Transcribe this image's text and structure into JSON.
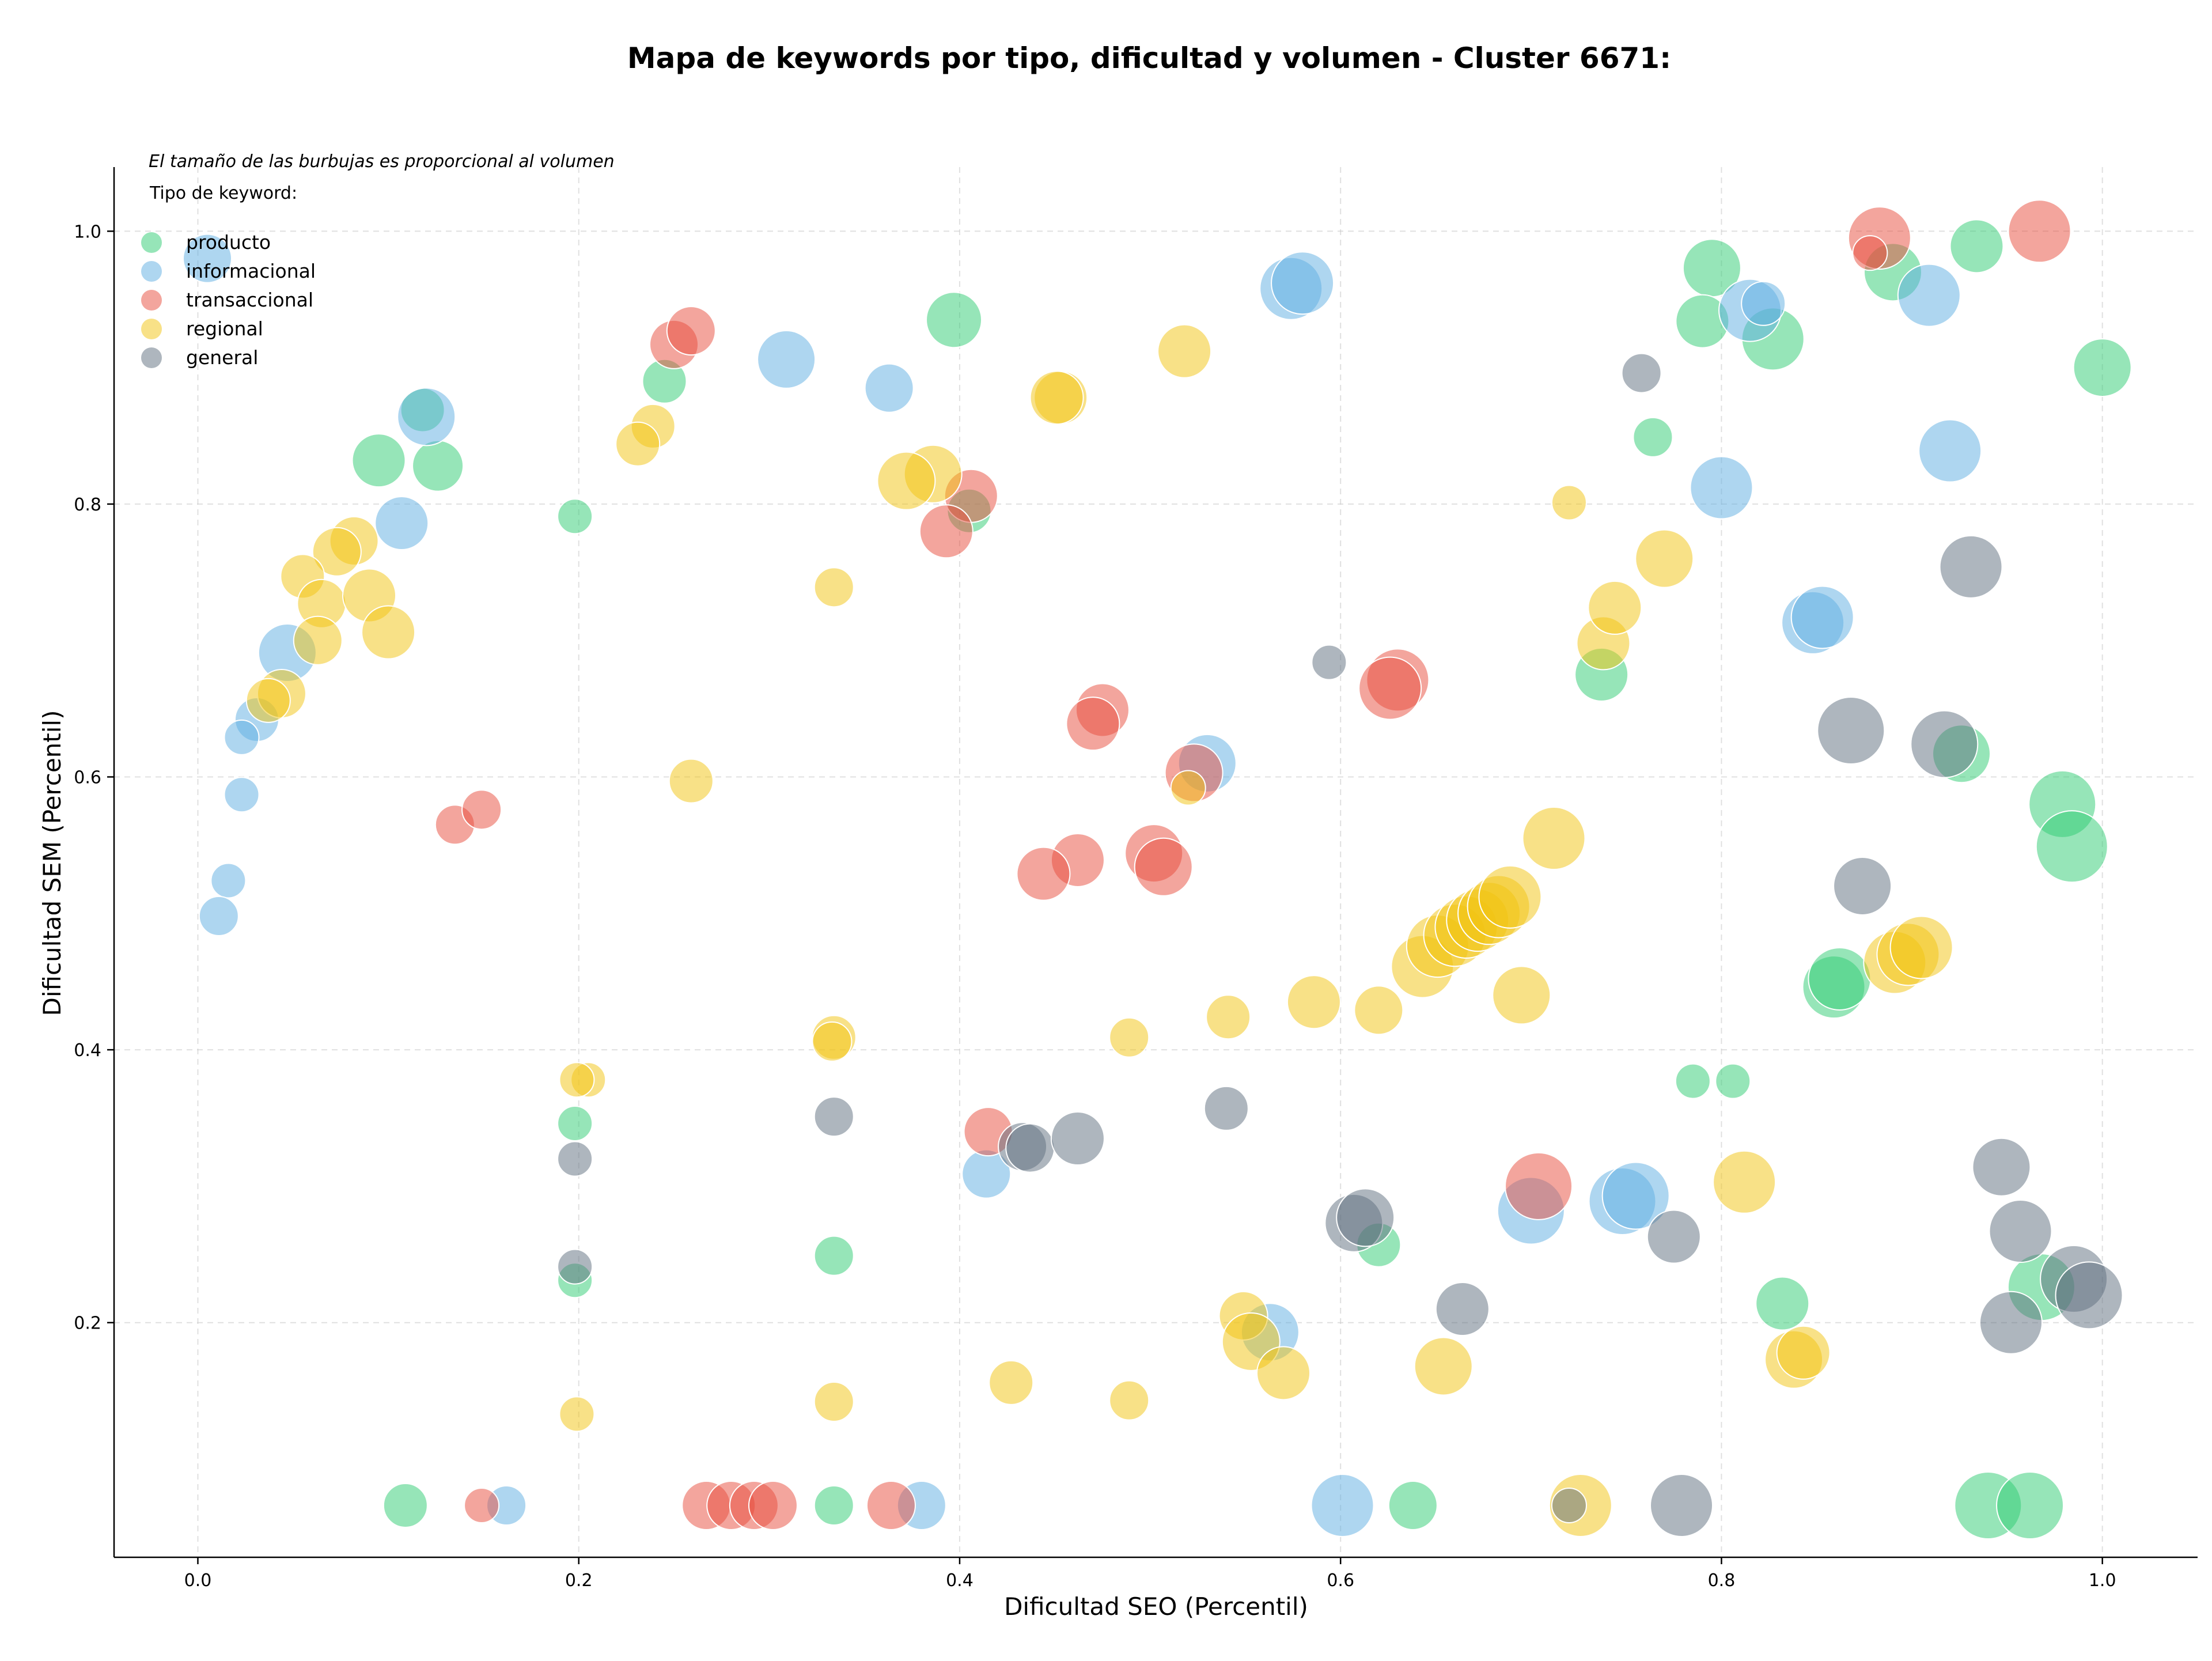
{
  "chart_data": {
    "type": "scatter",
    "title": "Mapa de keywords por tipo, dificultad y volumen - Cluster 6671:",
    "annotation": "El tamaño de las burbujas es proporcional al volumen",
    "xlabel": "Dificultad SEO (Percentil)",
    "ylabel": "Dificultad SEM (Percentil)",
    "xlim": [
      -0.044,
      1.05
    ],
    "ylim": [
      0.028,
      1.047
    ],
    "x_ticks": [
      "0.0",
      "0.2",
      "0.4",
      "0.6",
      "0.8",
      "1.0"
    ],
    "y_ticks": [
      "0.2",
      "0.4",
      "0.6",
      "0.8",
      "1.0"
    ],
    "grid": true,
    "legend": {
      "title": "Tipo de keyword:",
      "placement": "top-left"
    },
    "bubble_size": "volumen (relative)",
    "series": [
      {
        "name": "producto",
        "color": "#2ecc71",
        "points": [
          {
            "x": 0.118,
            "y": 0.869,
            "s": 0.4
          },
          {
            "x": 0.095,
            "y": 0.832,
            "s": 0.6
          },
          {
            "x": 0.126,
            "y": 0.828,
            "s": 0.55
          },
          {
            "x": 0.198,
            "y": 0.791,
            "s": 0.2
          },
          {
            "x": 0.245,
            "y": 0.89,
            "s": 0.4
          },
          {
            "x": 0.397,
            "y": 0.935,
            "s": 0.65
          },
          {
            "x": 0.405,
            "y": 0.795,
            "s": 0.4
          },
          {
            "x": 0.198,
            "y": 0.346,
            "s": 0.2
          },
          {
            "x": 0.198,
            "y": 0.231,
            "s": 0.2
          },
          {
            "x": 0.334,
            "y": 0.249,
            "s": 0.3
          },
          {
            "x": 0.109,
            "y": 0.066,
            "s": 0.4
          },
          {
            "x": 0.334,
            "y": 0.066,
            "s": 0.3
          },
          {
            "x": 0.62,
            "y": 0.257,
            "s": 0.4
          },
          {
            "x": 0.638,
            "y": 0.066,
            "s": 0.5
          },
          {
            "x": 0.737,
            "y": 0.675,
            "s": 0.6
          },
          {
            "x": 0.764,
            "y": 0.849,
            "s": 0.3
          },
          {
            "x": 0.785,
            "y": 0.377,
            "s": 0.2
          },
          {
            "x": 0.806,
            "y": 0.377,
            "s": 0.2
          },
          {
            "x": 0.795,
            "y": 0.973,
            "s": 0.7
          },
          {
            "x": 0.79,
            "y": 0.934,
            "s": 0.6
          },
          {
            "x": 0.827,
            "y": 0.921,
            "s": 0.8
          },
          {
            "x": 0.89,
            "y": 0.97,
            "s": 0.7
          },
          {
            "x": 0.934,
            "y": 0.989,
            "s": 0.6
          },
          {
            "x": 1.0,
            "y": 0.9,
            "s": 0.7
          },
          {
            "x": 0.926,
            "y": 0.617,
            "s": 0.7
          },
          {
            "x": 0.979,
            "y": 0.58,
            "s": 0.9
          },
          {
            "x": 0.984,
            "y": 0.549,
            "s": 1.0
          },
          {
            "x": 0.859,
            "y": 0.446,
            "s": 0.8
          },
          {
            "x": 0.862,
            "y": 0.452,
            "s": 0.8
          },
          {
            "x": 0.832,
            "y": 0.214,
            "s": 0.6
          },
          {
            "x": 0.968,
            "y": 0.226,
            "s": 0.9
          },
          {
            "x": 0.94,
            "y": 0.066,
            "s": 0.9
          },
          {
            "x": 0.962,
            "y": 0.066,
            "s": 0.9
          }
        ]
      },
      {
        "name": "informacional",
        "color": "#5dade2",
        "points": [
          {
            "x": 0.005,
            "y": 0.98,
            "s": 0.5
          },
          {
            "x": 0.12,
            "y": 0.864,
            "s": 0.7
          },
          {
            "x": 0.107,
            "y": 0.786,
            "s": 0.6
          },
          {
            "x": 0.047,
            "y": 0.691,
            "s": 0.7
          },
          {
            "x": 0.031,
            "y": 0.642,
            "s": 0.4
          },
          {
            "x": 0.023,
            "y": 0.629,
            "s": 0.2
          },
          {
            "x": 0.023,
            "y": 0.587,
            "s": 0.2
          },
          {
            "x": 0.016,
            "y": 0.524,
            "s": 0.2
          },
          {
            "x": 0.011,
            "y": 0.498,
            "s": 0.3
          },
          {
            "x": 0.309,
            "y": 0.906,
            "s": 0.7
          },
          {
            "x": 0.363,
            "y": 0.885,
            "s": 0.5
          },
          {
            "x": 0.574,
            "y": 0.958,
            "s": 0.8
          },
          {
            "x": 0.58,
            "y": 0.962,
            "s": 0.8
          },
          {
            "x": 0.53,
            "y": 0.61,
            "s": 0.7
          },
          {
            "x": 0.414,
            "y": 0.309,
            "s": 0.5
          },
          {
            "x": 0.162,
            "y": 0.066,
            "s": 0.3
          },
          {
            "x": 0.38,
            "y": 0.066,
            "s": 0.5
          },
          {
            "x": 0.563,
            "y": 0.193,
            "s": 0.7
          },
          {
            "x": 0.601,
            "y": 0.066,
            "s": 0.8
          },
          {
            "x": 0.7,
            "y": 0.282,
            "s": 0.9
          },
          {
            "x": 0.748,
            "y": 0.289,
            "s": 0.9
          },
          {
            "x": 0.755,
            "y": 0.293,
            "s": 0.9
          },
          {
            "x": 0.8,
            "y": 0.812,
            "s": 0.8
          },
          {
            "x": 0.815,
            "y": 0.942,
            "s": 0.8
          },
          {
            "x": 0.822,
            "y": 0.947,
            "s": 0.4
          },
          {
            "x": 0.848,
            "y": 0.713,
            "s": 0.8
          },
          {
            "x": 0.853,
            "y": 0.717,
            "s": 0.8
          },
          {
            "x": 0.909,
            "y": 0.953,
            "s": 0.8
          },
          {
            "x": 0.92,
            "y": 0.839,
            "s": 0.8
          }
        ]
      },
      {
        "name": "transaccional",
        "color": "#e74c3c",
        "points": [
          {
            "x": 0.25,
            "y": 0.917,
            "s": 0.5
          },
          {
            "x": 0.259,
            "y": 0.927,
            "s": 0.5
          },
          {
            "x": 0.406,
            "y": 0.806,
            "s": 0.6
          },
          {
            "x": 0.393,
            "y": 0.78,
            "s": 0.6
          },
          {
            "x": 0.135,
            "y": 0.565,
            "s": 0.3
          },
          {
            "x": 0.149,
            "y": 0.576,
            "s": 0.3
          },
          {
            "x": 0.475,
            "y": 0.649,
            "s": 0.6
          },
          {
            "x": 0.47,
            "y": 0.639,
            "s": 0.6
          },
          {
            "x": 0.462,
            "y": 0.539,
            "s": 0.6
          },
          {
            "x": 0.444,
            "y": 0.529,
            "s": 0.6
          },
          {
            "x": 0.502,
            "y": 0.544,
            "s": 0.7
          },
          {
            "x": 0.507,
            "y": 0.534,
            "s": 0.7
          },
          {
            "x": 0.523,
            "y": 0.603,
            "s": 0.7
          },
          {
            "x": 0.63,
            "y": 0.671,
            "s": 0.8
          },
          {
            "x": 0.626,
            "y": 0.665,
            "s": 0.8
          },
          {
            "x": 0.415,
            "y": 0.34,
            "s": 0.5
          },
          {
            "x": 0.704,
            "y": 0.3,
            "s": 0.9
          },
          {
            "x": 0.149,
            "y": 0.066,
            "s": 0.2
          },
          {
            "x": 0.267,
            "y": 0.066,
            "s": 0.5
          },
          {
            "x": 0.28,
            "y": 0.066,
            "s": 0.5
          },
          {
            "x": 0.292,
            "y": 0.066,
            "s": 0.5
          },
          {
            "x": 0.302,
            "y": 0.066,
            "s": 0.5
          },
          {
            "x": 0.364,
            "y": 0.066,
            "s": 0.5
          },
          {
            "x": 0.883,
            "y": 0.995,
            "s": 0.8
          },
          {
            "x": 0.967,
            "y": 1.0,
            "s": 0.8
          },
          {
            "x": 0.878,
            "y": 0.984,
            "s": 0.2
          }
        ]
      },
      {
        "name": "regional",
        "color": "#f1c40f",
        "points": [
          {
            "x": 0.239,
            "y": 0.857,
            "s": 0.4
          },
          {
            "x": 0.231,
            "y": 0.844,
            "s": 0.4
          },
          {
            "x": 0.082,
            "y": 0.773,
            "s": 0.5
          },
          {
            "x": 0.073,
            "y": 0.765,
            "s": 0.5
          },
          {
            "x": 0.055,
            "y": 0.747,
            "s": 0.4
          },
          {
            "x": 0.065,
            "y": 0.727,
            "s": 0.5
          },
          {
            "x": 0.09,
            "y": 0.733,
            "s": 0.6
          },
          {
            "x": 0.1,
            "y": 0.706,
            "s": 0.6
          },
          {
            "x": 0.063,
            "y": 0.7,
            "s": 0.5
          },
          {
            "x": 0.044,
            "y": 0.661,
            "s": 0.5
          },
          {
            "x": 0.037,
            "y": 0.656,
            "s": 0.4
          },
          {
            "x": 0.386,
            "y": 0.822,
            "s": 0.7
          },
          {
            "x": 0.372,
            "y": 0.817,
            "s": 0.7
          },
          {
            "x": 0.453,
            "y": 0.878,
            "s": 0.6
          },
          {
            "x": 0.451,
            "y": 0.878,
            "s": 0.6
          },
          {
            "x": 0.518,
            "y": 0.912,
            "s": 0.6
          },
          {
            "x": 0.334,
            "y": 0.739,
            "s": 0.3
          },
          {
            "x": 0.259,
            "y": 0.597,
            "s": 0.4
          },
          {
            "x": 0.205,
            "y": 0.378,
            "s": 0.2
          },
          {
            "x": 0.199,
            "y": 0.378,
            "s": 0.2
          },
          {
            "x": 0.334,
            "y": 0.409,
            "s": 0.4
          },
          {
            "x": 0.333,
            "y": 0.406,
            "s": 0.3
          },
          {
            "x": 0.199,
            "y": 0.133,
            "s": 0.2
          },
          {
            "x": 0.334,
            "y": 0.142,
            "s": 0.3
          },
          {
            "x": 0.427,
            "y": 0.156,
            "s": 0.4
          },
          {
            "x": 0.489,
            "y": 0.143,
            "s": 0.3
          },
          {
            "x": 0.489,
            "y": 0.409,
            "s": 0.3
          },
          {
            "x": 0.541,
            "y": 0.424,
            "s": 0.4
          },
          {
            "x": 0.52,
            "y": 0.592,
            "s": 0.2
          },
          {
            "x": 0.586,
            "y": 0.435,
            "s": 0.6
          },
          {
            "x": 0.62,
            "y": 0.429,
            "s": 0.5
          },
          {
            "x": 0.643,
            "y": 0.461,
            "s": 0.8
          },
          {
            "x": 0.651,
            "y": 0.476,
            "s": 0.8
          },
          {
            "x": 0.66,
            "y": 0.484,
            "s": 0.8
          },
          {
            "x": 0.666,
            "y": 0.49,
            "s": 0.8
          },
          {
            "x": 0.672,
            "y": 0.495,
            "s": 0.8
          },
          {
            "x": 0.678,
            "y": 0.5,
            "s": 0.8
          },
          {
            "x": 0.683,
            "y": 0.505,
            "s": 0.8
          },
          {
            "x": 0.689,
            "y": 0.512,
            "s": 0.8
          },
          {
            "x": 0.695,
            "y": 0.44,
            "s": 0.7
          },
          {
            "x": 0.712,
            "y": 0.555,
            "s": 0.8
          },
          {
            "x": 0.72,
            "y": 0.801,
            "s": 0.2
          },
          {
            "x": 0.738,
            "y": 0.698,
            "s": 0.6
          },
          {
            "x": 0.744,
            "y": 0.724,
            "s": 0.6
          },
          {
            "x": 0.77,
            "y": 0.76,
            "s": 0.7
          },
          {
            "x": 0.549,
            "y": 0.205,
            "s": 0.5
          },
          {
            "x": 0.553,
            "y": 0.186,
            "s": 0.7
          },
          {
            "x": 0.57,
            "y": 0.163,
            "s": 0.6
          },
          {
            "x": 0.654,
            "y": 0.168,
            "s": 0.7
          },
          {
            "x": 0.726,
            "y": 0.066,
            "s": 0.8
          },
          {
            "x": 0.812,
            "y": 0.303,
            "s": 0.8
          },
          {
            "x": 0.838,
            "y": 0.173,
            "s": 0.7
          },
          {
            "x": 0.843,
            "y": 0.178,
            "s": 0.6
          },
          {
            "x": 0.891,
            "y": 0.464,
            "s": 0.8
          },
          {
            "x": 0.898,
            "y": 0.47,
            "s": 0.8
          },
          {
            "x": 0.905,
            "y": 0.475,
            "s": 0.8
          }
        ]
      },
      {
        "name": "general",
        "color": "#5d6d7e",
        "points": [
          {
            "x": 0.758,
            "y": 0.896,
            "s": 0.3
          },
          {
            "x": 0.594,
            "y": 0.684,
            "s": 0.2
          },
          {
            "x": 0.931,
            "y": 0.754,
            "s": 0.8
          },
          {
            "x": 0.868,
            "y": 0.634,
            "s": 0.9
          },
          {
            "x": 0.917,
            "y": 0.624,
            "s": 0.9
          },
          {
            "x": 0.874,
            "y": 0.52,
            "s": 0.7
          },
          {
            "x": 0.198,
            "y": 0.32,
            "s": 0.2
          },
          {
            "x": 0.198,
            "y": 0.241,
            "s": 0.2
          },
          {
            "x": 0.334,
            "y": 0.351,
            "s": 0.3
          },
          {
            "x": 0.433,
            "y": 0.329,
            "s": 0.5
          },
          {
            "x": 0.437,
            "y": 0.328,
            "s": 0.5
          },
          {
            "x": 0.462,
            "y": 0.335,
            "s": 0.6
          },
          {
            "x": 0.54,
            "y": 0.357,
            "s": 0.4
          },
          {
            "x": 0.607,
            "y": 0.273,
            "s": 0.7
          },
          {
            "x": 0.613,
            "y": 0.277,
            "s": 0.7
          },
          {
            "x": 0.664,
            "y": 0.21,
            "s": 0.6
          },
          {
            "x": 0.72,
            "y": 0.066,
            "s": 0.2
          },
          {
            "x": 0.775,
            "y": 0.263,
            "s": 0.6
          },
          {
            "x": 0.779,
            "y": 0.066,
            "s": 0.8
          },
          {
            "x": 0.947,
            "y": 0.314,
            "s": 0.7
          },
          {
            "x": 0.957,
            "y": 0.267,
            "s": 0.8
          },
          {
            "x": 0.952,
            "y": 0.2,
            "s": 0.8
          },
          {
            "x": 0.985,
            "y": 0.232,
            "s": 0.9
          },
          {
            "x": 0.993,
            "y": 0.22,
            "s": 0.9
          }
        ]
      }
    ]
  }
}
